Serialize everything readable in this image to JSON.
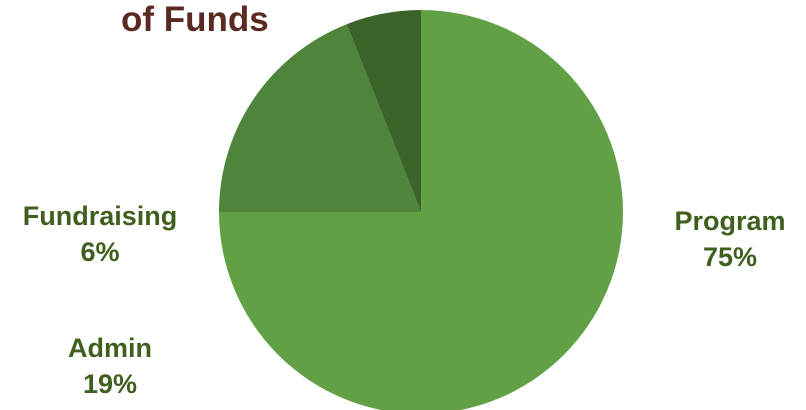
{
  "chart_data": {
    "type": "pie",
    "title": "of Funds",
    "colors": {
      "title": "#5a2a22",
      "label": "#3f5f1f"
    },
    "slices": [
      {
        "name": "Program",
        "value": 75,
        "percent_label": "75%",
        "color": "#62a046"
      },
      {
        "name": "Admin",
        "value": 19,
        "percent_label": "19%",
        "color": "#4f853a"
      },
      {
        "name": "Fundraising",
        "value": 6,
        "percent_label": "6%",
        "color": "#3c632a"
      }
    ]
  }
}
